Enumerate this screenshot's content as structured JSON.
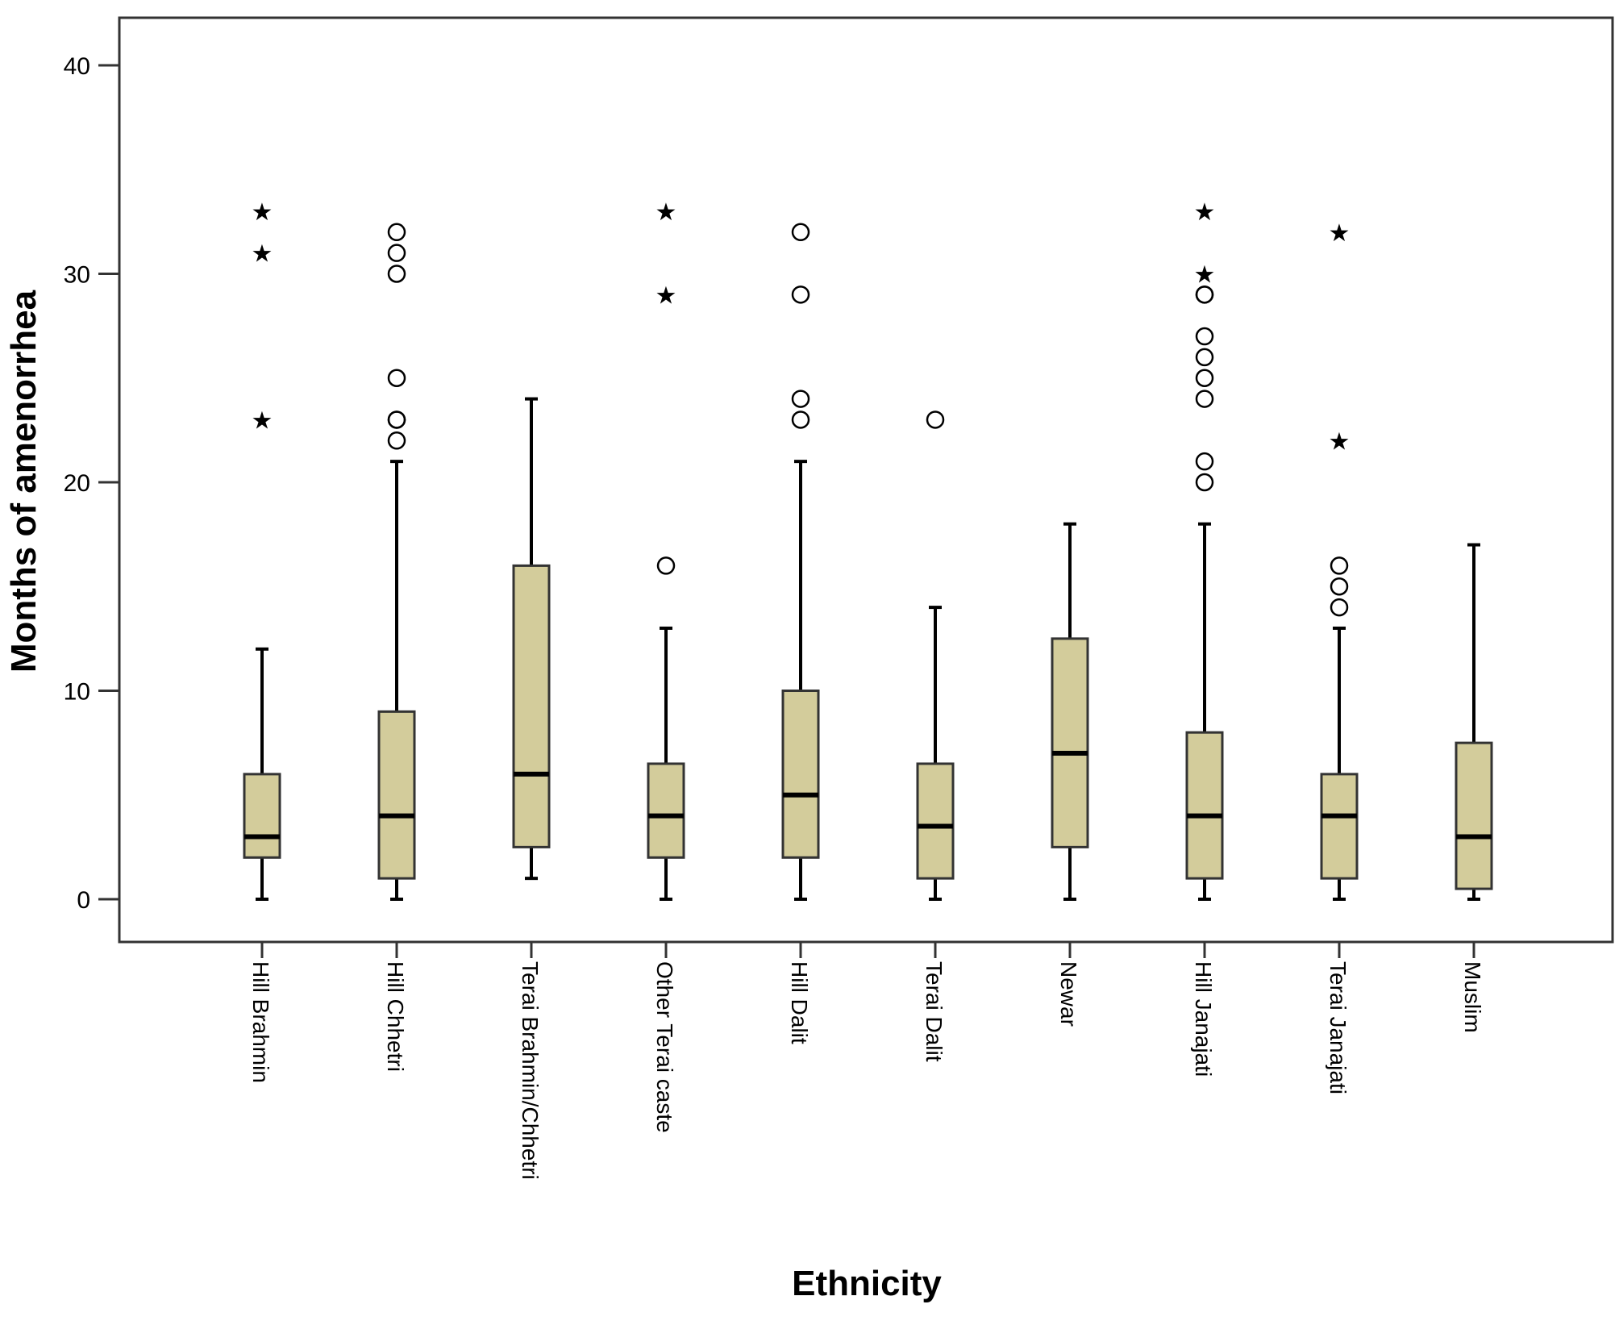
{
  "chart_data": {
    "type": "boxplot",
    "title": "",
    "xlabel": "Ethnicity",
    "ylabel": "Months of amenorrhea",
    "ylim": [
      -2,
      42
    ],
    "yticks": [
      0,
      10,
      20,
      30,
      40
    ],
    "grid": false,
    "box_color": "#d3cc9b",
    "line_color": "#000000",
    "outlier_glyph": "○",
    "extreme_glyph": "★",
    "groups": [
      {
        "label": "Hill Brahmin",
        "min": 0,
        "q1": 2,
        "median": 3,
        "q3": 6,
        "max": 12,
        "outliers": [],
        "extremes": [
          23,
          31,
          33
        ]
      },
      {
        "label": "Hill Chhetri",
        "min": 0,
        "q1": 1,
        "median": 4,
        "q3": 9,
        "max": 21,
        "outliers": [
          22,
          23,
          23,
          25,
          30,
          31,
          32
        ],
        "extremes": []
      },
      {
        "label": "Terai Brahmin/Chhetri",
        "min": 1,
        "q1": 2.5,
        "median": 6,
        "q3": 16,
        "max": 24,
        "outliers": [],
        "extremes": []
      },
      {
        "label": "Other Terai caste",
        "min": 0,
        "q1": 2,
        "median": 4,
        "q3": 6.5,
        "max": 13,
        "outliers": [
          16
        ],
        "extremes": [
          29,
          33
        ]
      },
      {
        "label": "Hill Dalit",
        "min": 0,
        "q1": 2,
        "median": 5,
        "q3": 10,
        "max": 21,
        "outliers": [
          23,
          24,
          29,
          32
        ],
        "extremes": []
      },
      {
        "label": "Terai Dalit",
        "min": 0,
        "q1": 1,
        "median": 3.5,
        "q3": 6.5,
        "max": 14,
        "outliers": [
          23
        ],
        "extremes": []
      },
      {
        "label": "Newar",
        "min": 0,
        "q1": 2.5,
        "median": 7,
        "q3": 12.5,
        "max": 18,
        "outliers": [],
        "extremes": []
      },
      {
        "label": "Hill Janajati",
        "min": 0,
        "q1": 1,
        "median": 4,
        "q3": 8,
        "max": 18,
        "outliers": [
          20,
          21,
          24,
          25,
          26,
          27,
          29,
          29
        ],
        "extremes": [
          30,
          33
        ]
      },
      {
        "label": "Terai Janajati",
        "min": 0,
        "q1": 1,
        "median": 4,
        "q3": 6,
        "max": 13,
        "outliers": [
          14,
          15,
          16
        ],
        "extremes": [
          22,
          32
        ]
      },
      {
        "label": "Muslim",
        "min": 0,
        "q1": 0.5,
        "median": 3,
        "q3": 7.5,
        "max": 17,
        "outliers": [],
        "extremes": []
      }
    ]
  }
}
